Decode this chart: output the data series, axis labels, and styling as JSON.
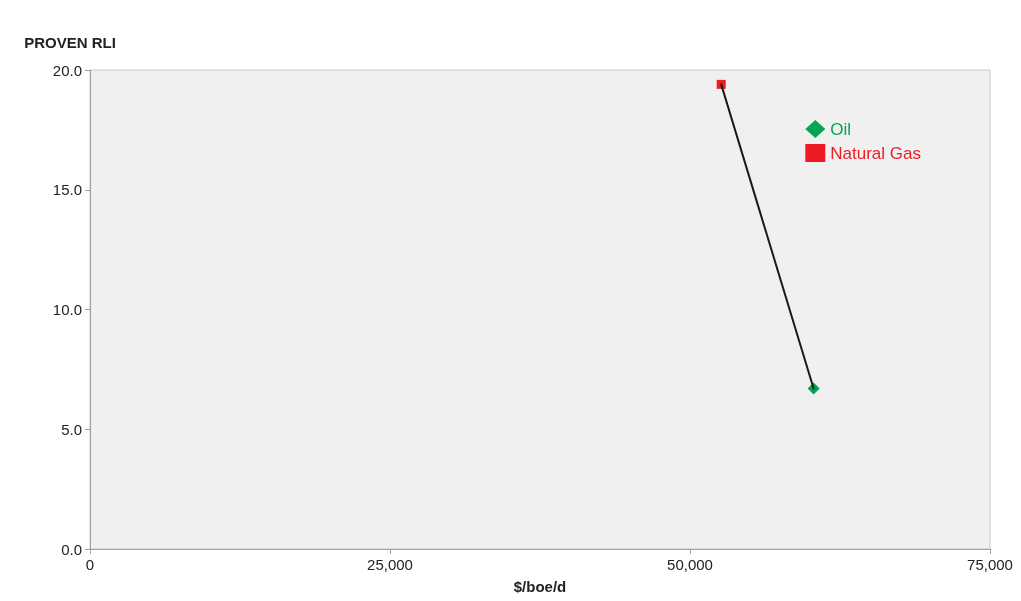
{
  "chart_data": {
    "type": "scatter",
    "xlabel": "$/boe/d",
    "ylabel": "PROVEN RLI",
    "xlim": [
      0,
      75000
    ],
    "xticks": [
      0,
      {
        "value": 25000,
        "label": "25,000"
      },
      {
        "value": 50000,
        "label": "50,000"
      },
      {
        "value": 75000,
        "label": "75,000"
      }
    ],
    "ylim": [
      0,
      20
    ],
    "yticks": [
      {
        "value": 0,
        "label": "0.0"
      },
      {
        "value": 5,
        "label": "5.0"
      },
      {
        "value": 10,
        "label": "10.0"
      },
      {
        "value": 15,
        "label": "15.0"
      },
      {
        "value": 20,
        "label": "20.0"
      }
    ],
    "grid": false,
    "legend": "top right",
    "x": [
      52600,
      60300
    ],
    "series": [
      {
        "type": "line",
        "color": "#1a1a1a",
        "marker": "none",
        "values": [
          19.4,
          6.7
        ]
      },
      {
        "name": "Oil",
        "color": "#00a651",
        "marker": "diamond",
        "values": [
          null,
          6.7
        ]
      },
      {
        "name": "Natural Gas",
        "color": "#ed1c24",
        "marker": "square",
        "values": [
          19.4,
          null
        ]
      }
    ]
  }
}
